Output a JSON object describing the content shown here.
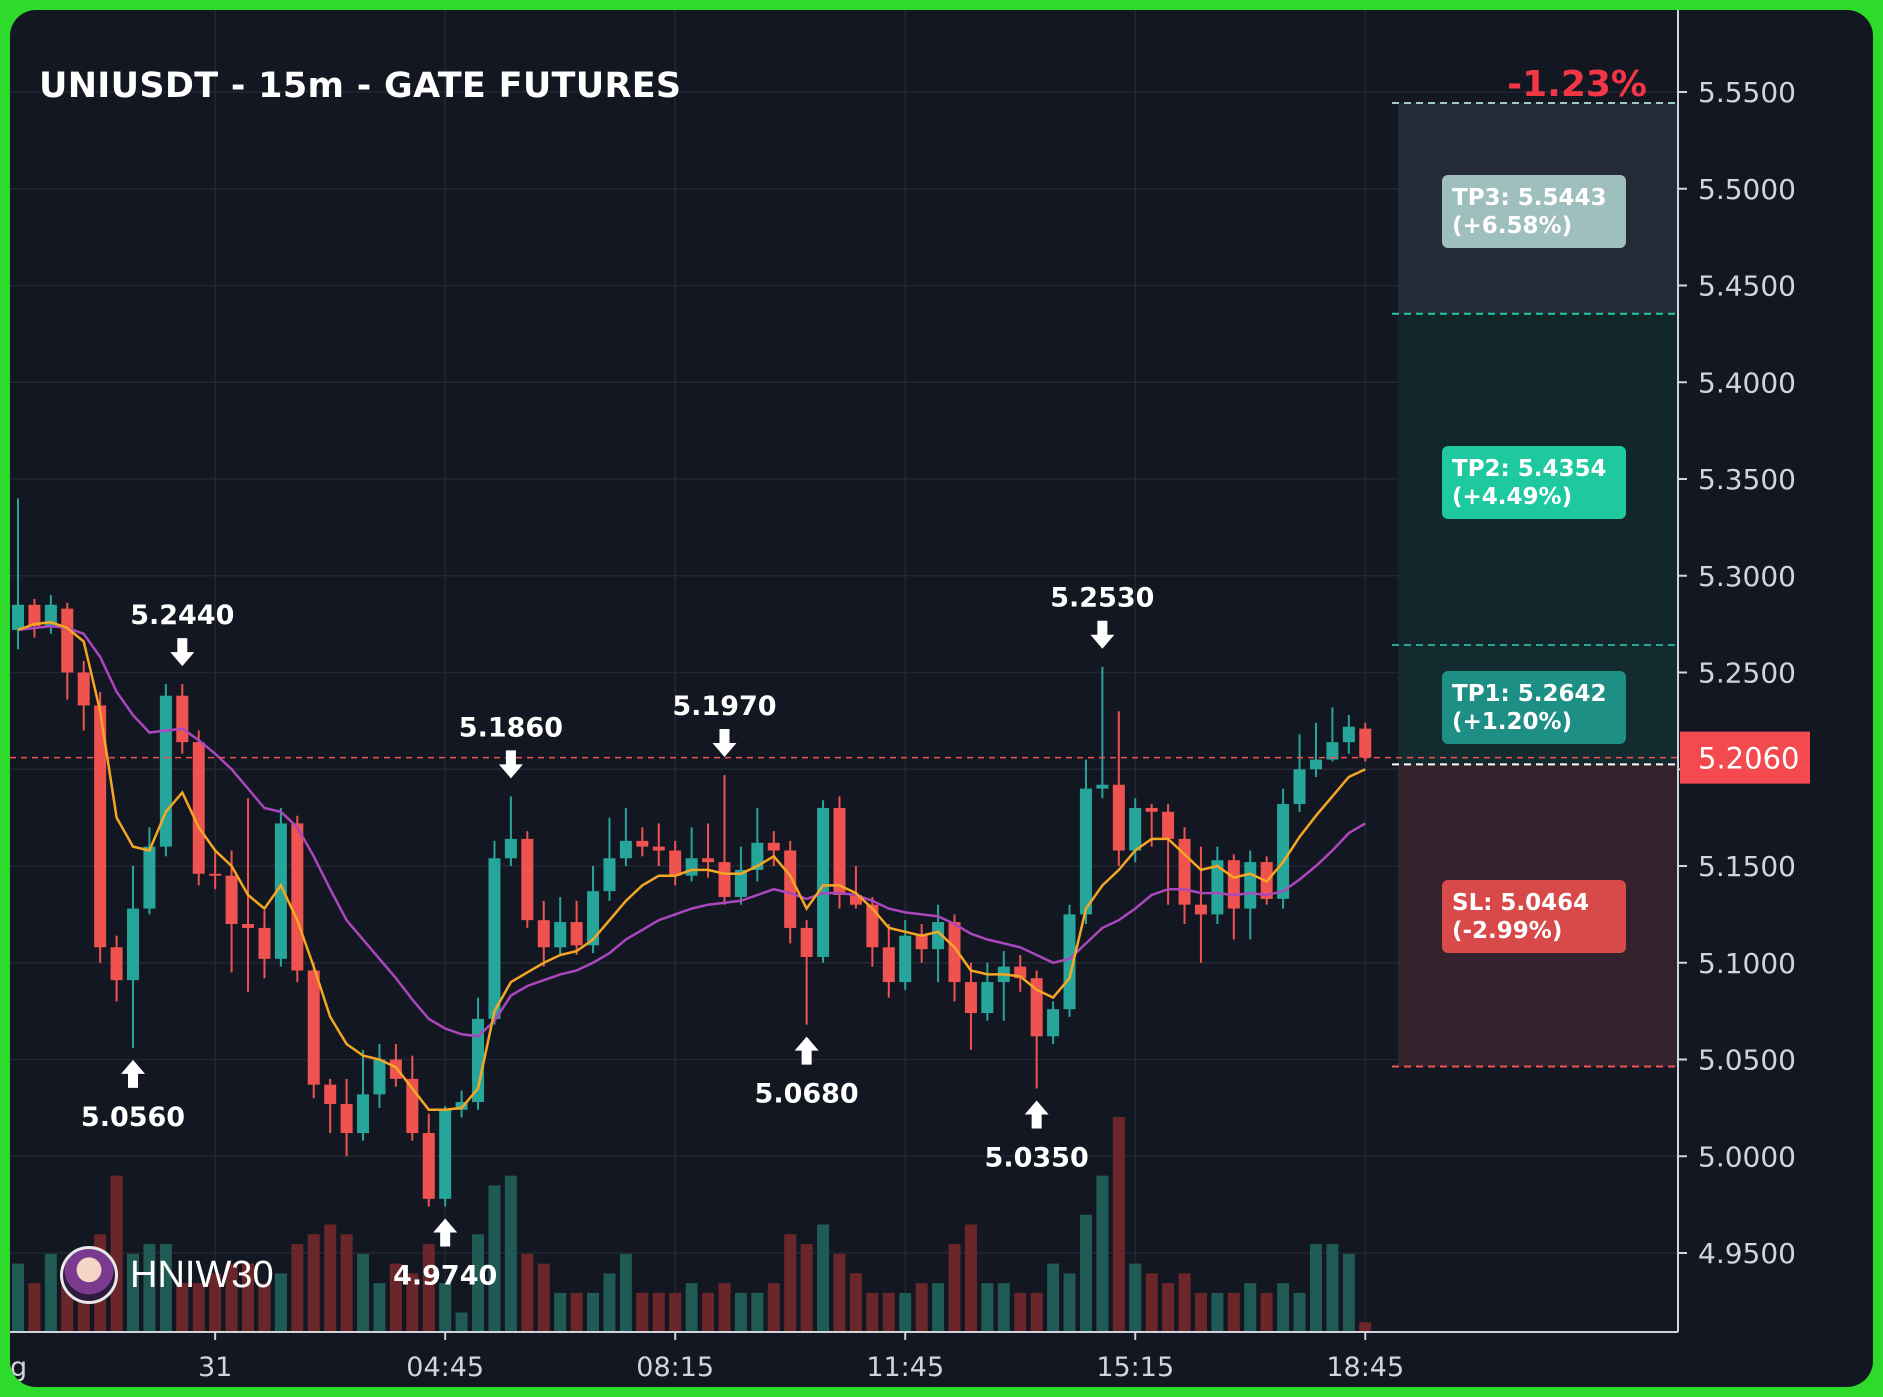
{
  "header": {
    "title": "UNIUSDT - 15m - GATE FUTURES",
    "change": "-1.23%"
  },
  "watermark": {
    "name": "HNIW30"
  },
  "colors": {
    "bg": "#131722",
    "up": "#26a69a",
    "down": "#ef5350",
    "ema_fast": "#f5a623",
    "ema_slow": "#ab47bc",
    "tp_label": "#1ec9a0",
    "sl_label": "#d84a4a"
  },
  "chart_data": {
    "type": "candlestick",
    "title": "UNIUSDT - 15m - GATE FUTURES",
    "ylim": [
      4.91,
      5.59
    ],
    "y_ticks": [
      "5.5500",
      "5.5000",
      "5.4500",
      "5.4000",
      "5.3500",
      "5.3000",
      "5.2500",
      "5.2000",
      "5.1500",
      "5.1000",
      "5.0500",
      "5.0000",
      "4.9500"
    ],
    "x_ticks": [
      "31",
      "04:45",
      "08:15",
      "11:45",
      "15:15",
      "18:45"
    ],
    "x_tick_index": [
      12,
      26,
      40,
      54,
      68,
      82
    ],
    "x_partial_label": "g",
    "candles": [
      [
        5.272,
        5.285,
        5.34,
        5.262
      ],
      [
        5.285,
        5.274,
        5.288,
        5.268
      ],
      [
        5.274,
        5.285,
        5.29,
        5.27
      ],
      [
        5.283,
        5.25,
        5.286,
        5.236
      ],
      [
        5.25,
        5.233,
        5.256,
        5.22
      ],
      [
        5.233,
        5.108,
        5.24,
        5.1
      ],
      [
        5.108,
        5.091,
        5.114,
        5.08
      ],
      [
        5.091,
        5.128,
        5.15,
        5.056
      ],
      [
        5.128,
        5.16,
        5.17,
        5.125
      ],
      [
        5.16,
        5.238,
        5.244,
        5.155
      ],
      [
        5.238,
        5.214,
        5.244,
        5.208
      ],
      [
        5.214,
        5.146,
        5.22,
        5.14
      ],
      [
        5.146,
        5.145,
        5.158,
        5.138
      ],
      [
        5.145,
        5.12,
        5.158,
        5.095
      ],
      [
        5.12,
        5.118,
        5.185,
        5.085
      ],
      [
        5.118,
        5.102,
        5.127,
        5.092
      ],
      [
        5.102,
        5.172,
        5.18,
        5.098
      ],
      [
        5.172,
        5.096,
        5.176,
        5.09
      ],
      [
        5.096,
        5.037,
        5.1,
        5.03
      ],
      [
        5.037,
        5.027,
        5.04,
        5.012
      ],
      [
        5.027,
        5.012,
        5.04,
        5.0
      ],
      [
        5.012,
        5.032,
        5.055,
        5.008
      ],
      [
        5.032,
        5.05,
        5.058,
        5.025
      ],
      [
        5.05,
        5.04,
        5.058,
        5.036
      ],
      [
        5.04,
        5.012,
        5.052,
        5.008
      ],
      [
        5.012,
        4.978,
        5.022,
        4.974
      ],
      [
        4.978,
        5.024,
        5.026,
        4.974
      ],
      [
        5.024,
        5.028,
        5.034,
        5.02
      ],
      [
        5.028,
        5.071,
        5.082,
        5.024
      ],
      [
        5.071,
        5.154,
        5.163,
        5.068
      ],
      [
        5.154,
        5.164,
        5.186,
        5.15
      ],
      [
        5.164,
        5.122,
        5.168,
        5.118
      ],
      [
        5.122,
        5.108,
        5.132,
        5.098
      ],
      [
        5.108,
        5.121,
        5.134,
        5.104
      ],
      [
        5.121,
        5.109,
        5.132,
        5.104
      ],
      [
        5.109,
        5.137,
        5.15,
        5.105
      ],
      [
        5.137,
        5.154,
        5.175,
        5.132
      ],
      [
        5.154,
        5.163,
        5.18,
        5.15
      ],
      [
        5.163,
        5.16,
        5.17,
        5.155
      ],
      [
        5.16,
        5.158,
        5.172,
        5.15
      ],
      [
        5.158,
        5.145,
        5.163,
        5.14
      ],
      [
        5.145,
        5.154,
        5.17,
        5.142
      ],
      [
        5.154,
        5.152,
        5.172,
        5.144
      ],
      [
        5.152,
        5.134,
        5.197,
        5.13
      ],
      [
        5.134,
        5.148,
        5.16,
        5.13
      ],
      [
        5.148,
        5.162,
        5.18,
        5.142
      ],
      [
        5.162,
        5.158,
        5.168,
        5.15
      ],
      [
        5.158,
        5.118,
        5.163,
        5.11
      ],
      [
        5.118,
        5.103,
        5.122,
        5.068
      ],
      [
        5.103,
        5.18,
        5.184,
        5.1
      ],
      [
        5.18,
        5.135,
        5.186,
        5.128
      ],
      [
        5.135,
        5.13,
        5.15,
        5.128
      ],
      [
        5.13,
        5.108,
        5.134,
        5.098
      ],
      [
        5.108,
        5.09,
        5.12,
        5.082
      ],
      [
        5.09,
        5.114,
        5.122,
        5.086
      ],
      [
        5.114,
        5.107,
        5.12,
        5.1
      ],
      [
        5.107,
        5.121,
        5.13,
        5.09
      ],
      [
        5.121,
        5.09,
        5.125,
        5.08
      ],
      [
        5.09,
        5.074,
        5.1,
        5.055
      ],
      [
        5.074,
        5.09,
        5.1,
        5.07
      ],
      [
        5.09,
        5.098,
        5.106,
        5.07
      ],
      [
        5.098,
        5.092,
        5.104,
        5.085
      ],
      [
        5.092,
        5.062,
        5.096,
        5.035
      ],
      [
        5.062,
        5.076,
        5.08,
        5.058
      ],
      [
        5.076,
        5.125,
        5.13,
        5.072
      ],
      [
        5.125,
        5.19,
        5.205,
        5.12
      ],
      [
        5.19,
        5.192,
        5.253,
        5.185
      ],
      [
        5.192,
        5.158,
        5.23,
        5.15
      ],
      [
        5.158,
        5.18,
        5.185,
        5.152
      ],
      [
        5.18,
        5.178,
        5.182,
        5.16
      ],
      [
        5.178,
        5.164,
        5.182,
        5.13
      ],
      [
        5.164,
        5.13,
        5.17,
        5.12
      ],
      [
        5.13,
        5.125,
        5.16,
        5.1
      ],
      [
        5.125,
        5.153,
        5.16,
        5.12
      ],
      [
        5.153,
        5.128,
        5.156,
        5.112
      ],
      [
        5.128,
        5.152,
        5.158,
        5.112
      ],
      [
        5.152,
        5.133,
        5.155,
        5.13
      ],
      [
        5.133,
        5.182,
        5.19,
        5.128
      ],
      [
        5.182,
        5.2,
        5.218,
        5.178
      ],
      [
        5.2,
        5.205,
        5.224,
        5.196
      ],
      [
        5.205,
        5.214,
        5.232,
        5.204
      ],
      [
        5.214,
        5.222,
        5.228,
        5.208
      ],
      [
        5.221,
        5.206,
        5.224,
        5.204
      ]
    ],
    "volumes": [
      0.07,
      0.05,
      0.08,
      0.06,
      0.06,
      0.1,
      0.16,
      0.08,
      0.09,
      0.09,
      0.05,
      0.05,
      0.06,
      0.07,
      0.07,
      0.05,
      0.06,
      0.09,
      0.1,
      0.11,
      0.1,
      0.08,
      0.05,
      0.07,
      0.06,
      0.09,
      0.05,
      0.02,
      0.1,
      0.15,
      0.16,
      0.08,
      0.07,
      0.04,
      0.04,
      0.04,
      0.06,
      0.08,
      0.04,
      0.04,
      0.04,
      0.05,
      0.04,
      0.05,
      0.04,
      0.04,
      0.05,
      0.1,
      0.09,
      0.11,
      0.08,
      0.06,
      0.04,
      0.04,
      0.04,
      0.05,
      0.05,
      0.09,
      0.11,
      0.05,
      0.05,
      0.04,
      0.04,
      0.07,
      0.06,
      0.12,
      0.16,
      0.22,
      0.07,
      0.06,
      0.05,
      0.06,
      0.04,
      0.04,
      0.04,
      0.05,
      0.04,
      0.05,
      0.04,
      0.09,
      0.09,
      0.08,
      0.01
    ],
    "ema_fast": [
      5.272,
      5.275,
      5.276,
      5.273,
      5.266,
      5.23,
      5.175,
      5.16,
      5.158,
      5.178,
      5.188,
      5.17,
      5.158,
      5.15,
      5.135,
      5.128,
      5.14,
      5.122,
      5.098,
      5.072,
      5.058,
      5.052,
      5.05,
      5.046,
      5.035,
      5.024,
      5.024,
      5.025,
      5.035,
      5.075,
      5.09,
      5.095,
      5.1,
      5.104,
      5.106,
      5.112,
      5.122,
      5.132,
      5.14,
      5.145,
      5.145,
      5.148,
      5.148,
      5.146,
      5.146,
      5.15,
      5.155,
      5.145,
      5.128,
      5.14,
      5.14,
      5.136,
      5.128,
      5.118,
      5.116,
      5.114,
      5.116,
      5.108,
      5.096,
      5.094,
      5.094,
      5.093,
      5.086,
      5.082,
      5.092,
      5.128,
      5.14,
      5.148,
      5.158,
      5.164,
      5.164,
      5.156,
      5.148,
      5.15,
      5.144,
      5.146,
      5.142,
      5.152,
      5.165,
      5.176,
      5.186,
      5.196,
      5.2
    ],
    "ema_slow": [
      5.272,
      5.273,
      5.274,
      5.273,
      5.27,
      5.258,
      5.24,
      5.228,
      5.219,
      5.22,
      5.221,
      5.215,
      5.208,
      5.2,
      5.19,
      5.18,
      5.178,
      5.17,
      5.155,
      5.138,
      5.122,
      5.112,
      5.102,
      5.092,
      5.081,
      5.071,
      5.066,
      5.063,
      5.062,
      5.07,
      5.083,
      5.088,
      5.091,
      5.094,
      5.096,
      5.1,
      5.105,
      5.112,
      5.117,
      5.122,
      5.125,
      5.128,
      5.13,
      5.131,
      5.132,
      5.135,
      5.138,
      5.136,
      5.133,
      5.136,
      5.136,
      5.135,
      5.132,
      5.128,
      5.126,
      5.125,
      5.124,
      5.12,
      5.115,
      5.112,
      5.11,
      5.108,
      5.104,
      5.1,
      5.102,
      5.11,
      5.118,
      5.122,
      5.128,
      5.135,
      5.138,
      5.138,
      5.136,
      5.136,
      5.135,
      5.136,
      5.135,
      5.137,
      5.143,
      5.15,
      5.158,
      5.167,
      5.172
    ],
    "annotations": [
      {
        "index": 7,
        "price": 5.056,
        "label": "5.0560",
        "dir": "up"
      },
      {
        "index": 10,
        "price": 5.244,
        "label": "5.2440",
        "dir": "down"
      },
      {
        "index": 26,
        "price": 4.974,
        "label": "4.9740",
        "dir": "up"
      },
      {
        "index": 30,
        "price": 5.186,
        "label": "5.1860",
        "dir": "down"
      },
      {
        "index": 43,
        "price": 5.197,
        "label": "5.1970",
        "dir": "down"
      },
      {
        "index": 48,
        "price": 5.068,
        "label": "5.0680",
        "dir": "up"
      },
      {
        "index": 62,
        "price": 5.035,
        "label": "5.0350",
        "dir": "up"
      },
      {
        "index": 66,
        "price": 5.253,
        "label": "5.2530",
        "dir": "down"
      }
    ],
    "current_price": 5.206,
    "current_price_label": "5.2060",
    "entry": 5.2025,
    "zones": {
      "tp3": {
        "price": 5.5443,
        "label": "TP3: 5.5443",
        "pct": "(+6.58%)"
      },
      "tp2": {
        "price": 5.4354,
        "label": "TP2: 5.4354",
        "pct": "(+4.49%)"
      },
      "tp1": {
        "price": 5.2642,
        "label": "TP1: 5.2642",
        "pct": "(+1.20%)"
      },
      "sl": {
        "price": 5.0464,
        "label": "SL: 5.0464",
        "pct": "(-2.99%)"
      }
    }
  }
}
